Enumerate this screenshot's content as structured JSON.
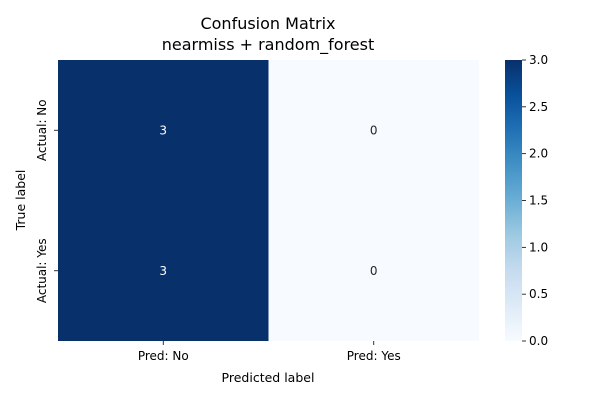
{
  "chart_data": {
    "type": "heatmap",
    "title": "Confusion Matrix",
    "subtitle": "nearmiss + random_forest",
    "xlabel": "Predicted label",
    "ylabel": "True label",
    "x_categories": [
      "Pred: No",
      "Pred: Yes"
    ],
    "y_categories": [
      "Actual: No",
      "Actual: Yes"
    ],
    "values": [
      [
        3,
        0
      ],
      [
        3,
        0
      ]
    ],
    "colorbar": {
      "min": 0.0,
      "max": 3.0,
      "ticks": [
        "0.0",
        "0.5",
        "1.0",
        "1.5",
        "2.0",
        "2.5",
        "3.0"
      ],
      "colormap": "Blues",
      "low_color": "#f7fbff",
      "high_color": "#08306b"
    },
    "annotation_colors": {
      "on_dark": "#ffffff",
      "on_light": "#262626"
    }
  }
}
